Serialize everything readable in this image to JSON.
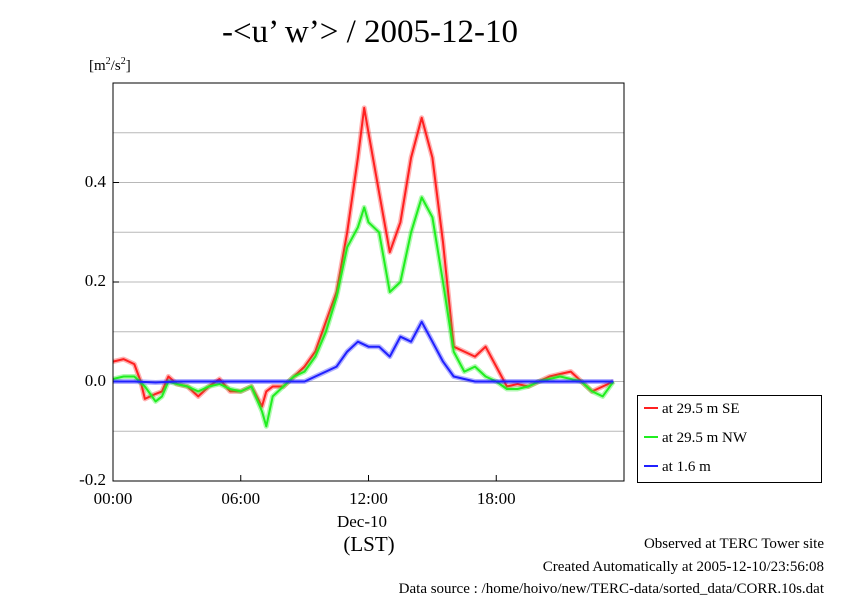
{
  "chart_data": {
    "type": "line",
    "title": "-<u’ w’> / 2005-12-10",
    "ylabel_unit": {
      "prefix": "[m",
      "sup1": "2",
      "mid": "/s",
      "sup2": "2",
      "suffix": "]"
    },
    "xlabel": "(LST)",
    "x_date_label": "Dec-10",
    "xlim": [
      0,
      24
    ],
    "ylim": [
      -0.2,
      0.6
    ],
    "grid": true,
    "legend_position": "right-bottom-outside",
    "x_ticks": [
      {
        "value": 0,
        "label": "00:00"
      },
      {
        "value": 6,
        "label": "06:00"
      },
      {
        "value": 12,
        "label": "12:00"
      },
      {
        "value": 18,
        "label": "18:00"
      }
    ],
    "y_ticks": [
      {
        "value": -0.2,
        "label": "-0.2"
      },
      {
        "value": 0.0,
        "label": "0.0"
      },
      {
        "value": 0.2,
        "label": "0.2"
      },
      {
        "value": 0.4,
        "label": "0.4"
      }
    ],
    "series": [
      {
        "name": "at 29.5 m SE",
        "color": "#ff2020",
        "points": [
          [
            0,
            0.04
          ],
          [
            0.5,
            0.045
          ],
          [
            1,
            0.035
          ],
          [
            1.3,
            0.0
          ],
          [
            1.5,
            -0.035
          ],
          [
            2,
            -0.025
          ],
          [
            2.3,
            -0.02
          ],
          [
            2.6,
            0.01
          ],
          [
            3,
            -0.005
          ],
          [
            3.5,
            -0.01
          ],
          [
            4,
            -0.03
          ],
          [
            4.5,
            -0.01
          ],
          [
            5,
            0.005
          ],
          [
            5.5,
            -0.02
          ],
          [
            6,
            -0.02
          ],
          [
            6.5,
            -0.01
          ],
          [
            7,
            -0.05
          ],
          [
            7.2,
            -0.02
          ],
          [
            7.5,
            -0.01
          ],
          [
            8,
            -0.01
          ],
          [
            8.5,
            0.01
          ],
          [
            9,
            0.03
          ],
          [
            9.5,
            0.06
          ],
          [
            10,
            0.12
          ],
          [
            10.5,
            0.18
          ],
          [
            11,
            0.3
          ],
          [
            11.5,
            0.45
          ],
          [
            11.8,
            0.55
          ],
          [
            12,
            0.5
          ],
          [
            12.5,
            0.38
          ],
          [
            13,
            0.26
          ],
          [
            13.5,
            0.32
          ],
          [
            14,
            0.45
          ],
          [
            14.5,
            0.53
          ],
          [
            15,
            0.45
          ],
          [
            15.5,
            0.28
          ],
          [
            16,
            0.07
          ],
          [
            16.5,
            0.06
          ],
          [
            17,
            0.05
          ],
          [
            17.5,
            0.07
          ],
          [
            18,
            0.03
          ],
          [
            18.5,
            -0.01
          ],
          [
            19,
            -0.005
          ],
          [
            19.5,
            -0.01
          ],
          [
            20,
            0.0
          ],
          [
            20.5,
            0.01
          ],
          [
            21,
            0.015
          ],
          [
            21.5,
            0.02
          ],
          [
            22,
            0.0
          ],
          [
            22.5,
            -0.02
          ],
          [
            23,
            -0.01
          ],
          [
            23.5,
            0.0
          ]
        ]
      },
      {
        "name": "at 29.5 m NW",
        "color": "#20ee20",
        "points": [
          [
            0,
            0.005
          ],
          [
            0.5,
            0.01
          ],
          [
            1,
            0.01
          ],
          [
            1.5,
            -0.01
          ],
          [
            2,
            -0.04
          ],
          [
            2.3,
            -0.03
          ],
          [
            2.6,
            0.0
          ],
          [
            3,
            -0.005
          ],
          [
            3.5,
            -0.01
          ],
          [
            4,
            -0.02
          ],
          [
            4.5,
            -0.01
          ],
          [
            5,
            -0.005
          ],
          [
            5.5,
            -0.015
          ],
          [
            6,
            -0.02
          ],
          [
            6.5,
            -0.01
          ],
          [
            7,
            -0.06
          ],
          [
            7.2,
            -0.09
          ],
          [
            7.5,
            -0.03
          ],
          [
            8,
            -0.01
          ],
          [
            8.5,
            0.01
          ],
          [
            9,
            0.02
          ],
          [
            9.5,
            0.05
          ],
          [
            10,
            0.1
          ],
          [
            10.5,
            0.17
          ],
          [
            11,
            0.27
          ],
          [
            11.5,
            0.31
          ],
          [
            11.8,
            0.35
          ],
          [
            12,
            0.32
          ],
          [
            12.5,
            0.3
          ],
          [
            13,
            0.18
          ],
          [
            13.5,
            0.2
          ],
          [
            14,
            0.3
          ],
          [
            14.5,
            0.37
          ],
          [
            15,
            0.33
          ],
          [
            15.5,
            0.2
          ],
          [
            16,
            0.06
          ],
          [
            16.5,
            0.02
          ],
          [
            17,
            0.03
          ],
          [
            17.5,
            0.01
          ],
          [
            18,
            0.0
          ],
          [
            18.5,
            -0.015
          ],
          [
            19,
            -0.015
          ],
          [
            19.5,
            -0.01
          ],
          [
            20,
            0.0
          ],
          [
            20.5,
            0.005
          ],
          [
            21,
            0.01
          ],
          [
            21.5,
            0.005
          ],
          [
            22,
            0.0
          ],
          [
            22.5,
            -0.02
          ],
          [
            23,
            -0.03
          ],
          [
            23.5,
            0.0
          ]
        ]
      },
      {
        "name": "at 1.6 m",
        "color": "#2020ff",
        "points": [
          [
            0,
            0.0
          ],
          [
            1,
            0.0
          ],
          [
            2,
            -0.002
          ],
          [
            3,
            0.0
          ],
          [
            4,
            0.0
          ],
          [
            5,
            0.0
          ],
          [
            6,
            0.0
          ],
          [
            7,
            0.0
          ],
          [
            8,
            0.0
          ],
          [
            9,
            0.0
          ],
          [
            9.5,
            0.01
          ],
          [
            10,
            0.02
          ],
          [
            10.5,
            0.03
          ],
          [
            11,
            0.06
          ],
          [
            11.5,
            0.08
          ],
          [
            12,
            0.07
          ],
          [
            12.5,
            0.07
          ],
          [
            13,
            0.05
          ],
          [
            13.5,
            0.09
          ],
          [
            14,
            0.08
          ],
          [
            14.5,
            0.12
          ],
          [
            15,
            0.08
          ],
          [
            15.5,
            0.04
          ],
          [
            16,
            0.01
          ],
          [
            16.5,
            0.005
          ],
          [
            17,
            0.0
          ],
          [
            18,
            0.0
          ],
          [
            19,
            0.0
          ],
          [
            20,
            0.0
          ],
          [
            21,
            0.0
          ],
          [
            22,
            0.0
          ],
          [
            23,
            0.0
          ],
          [
            23.5,
            0.0
          ]
        ]
      }
    ]
  },
  "footer": {
    "line1": "Observed at TERC Tower site",
    "line2": "Created Automatically at 2005-12-10/23:56:08",
    "line3": "Data source : /home/hoivo/new/TERC-data/sorted_data/CORR.10s.dat"
  }
}
